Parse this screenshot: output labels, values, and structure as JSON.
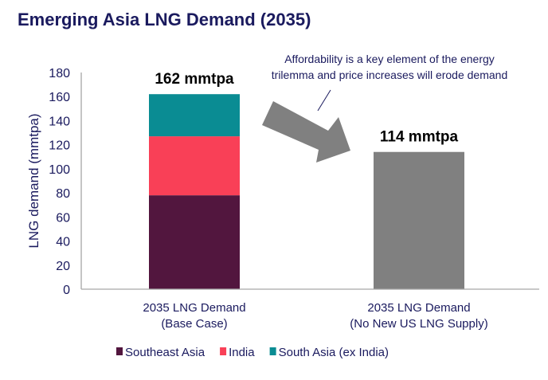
{
  "chart_data": {
    "type": "bar",
    "stacked": true,
    "title": "Emerging Asia LNG Demand (2035)",
    "ylabel": "LNG demand (mmtpa)",
    "xlabel": "",
    "ylim": [
      0,
      180
    ],
    "yticks": [
      0,
      20,
      40,
      60,
      80,
      100,
      120,
      140,
      160,
      180
    ],
    "grid": false,
    "legend_position": "bottom",
    "categories": [
      [
        "2035 LNG Demand",
        "(Base Case)"
      ],
      [
        "2035 LNG Demand",
        "(No New US LNG Supply)"
      ]
    ],
    "series": [
      {
        "name": "Southeast Asia",
        "color": "#52163e",
        "values": [
          78,
          null
        ]
      },
      {
        "name": "India",
        "color": "#f94057",
        "values": [
          49,
          null
        ]
      },
      {
        "name": "South Asia (ex India)",
        "color": "#0a8c93",
        "values": [
          35,
          null
        ]
      }
    ],
    "total_bar": {
      "category_index": 1,
      "value": 114,
      "color": "#808080"
    },
    "data_labels": [
      "162 mmtpa",
      "114 mmtpa"
    ],
    "annotation": [
      "Affordability is a key element of the energy",
      "trilemma and price increases will erode demand"
    ],
    "colors": {
      "title": "#1a1a5e",
      "text": "#1a1a5e",
      "axis": "#a6a6a6",
      "arrow": "#808080"
    }
  }
}
